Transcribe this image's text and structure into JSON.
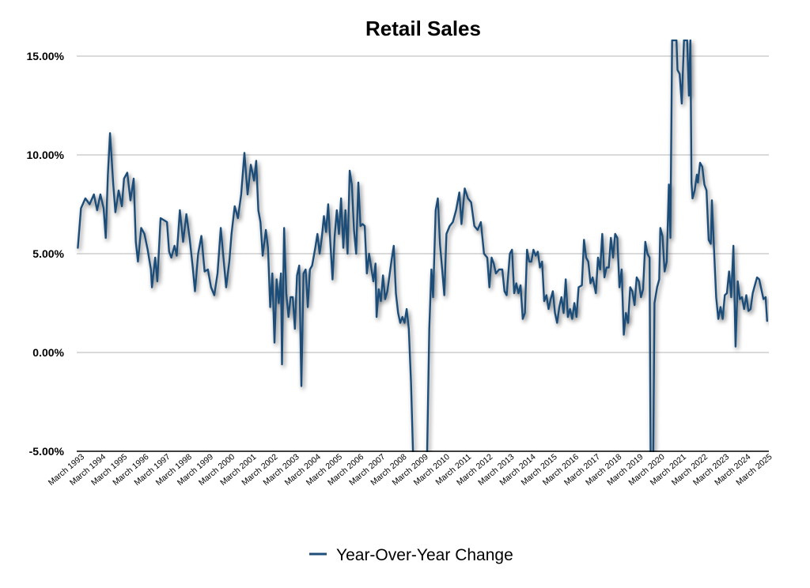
{
  "chart_data": {
    "type": "line",
    "title": "Retail Sales",
    "xlabel": "",
    "ylabel": "",
    "ylim": [
      -5,
      15
    ],
    "y_ticks": [
      "-5.00%",
      "0.00%",
      "5.00%",
      "10.00%",
      "15.00%"
    ],
    "y_tick_values": [
      -5,
      0,
      5,
      10,
      15
    ],
    "x_range": [
      1992.8,
      2025.0
    ],
    "x_tick_labels": [
      "March 1993",
      "March 1994",
      "March 1995",
      "March 1996",
      "March 1997",
      "March 1998",
      "March 1999",
      "March 2000",
      "March 2001",
      "March 2002",
      "March 2003",
      "March 2004",
      "March 2005",
      "March 2006",
      "March 2007",
      "March 2008",
      "March 2009",
      "March 2010",
      "March 2011",
      "March 2012",
      "March 2013",
      "March 2014",
      "March 2015",
      "March 2016",
      "March 2017",
      "March 2018",
      "March 2019",
      "March 2020",
      "March 2021",
      "March 2022",
      "March 2023",
      "March 2024",
      "March 2025"
    ],
    "x_tick_values": [
      1993.17,
      1994.17,
      1995.17,
      1996.17,
      1997.17,
      1998.17,
      1999.17,
      2000.17,
      2001.17,
      2002.17,
      2003.17,
      2004.17,
      2005.17,
      2006.17,
      2007.17,
      2008.17,
      2009.17,
      2010.17,
      2011.17,
      2012.17,
      2013.17,
      2014.17,
      2015.17,
      2016.17,
      2017.17,
      2018.17,
      2019.17,
      2020.17,
      2021.17,
      2022.17,
      2023.17,
      2024.17,
      2025.17
    ],
    "legend": {
      "position": "bottom-center"
    },
    "grid": true,
    "series": [
      {
        "name": "Year-Over-Year Change",
        "color": "#1f4e79",
        "points": [
          [
            1992.85,
            5.3
          ],
          [
            1993.0,
            7.3
          ],
          [
            1993.2,
            7.8
          ],
          [
            1993.4,
            7.5
          ],
          [
            1993.6,
            8.0
          ],
          [
            1993.75,
            7.2
          ],
          [
            1993.9,
            8.0
          ],
          [
            1994.05,
            7.3
          ],
          [
            1994.15,
            5.8
          ],
          [
            1994.25,
            9.0
          ],
          [
            1994.35,
            11.1
          ],
          [
            1994.5,
            8.5
          ],
          [
            1994.6,
            7.1
          ],
          [
            1994.75,
            8.2
          ],
          [
            1994.9,
            7.4
          ],
          [
            1995.0,
            8.8
          ],
          [
            1995.15,
            9.1
          ],
          [
            1995.3,
            7.7
          ],
          [
            1995.45,
            8.8
          ],
          [
            1995.55,
            5.6
          ],
          [
            1995.65,
            4.6
          ],
          [
            1995.8,
            6.3
          ],
          [
            1995.95,
            6.0
          ],
          [
            1996.1,
            5.2
          ],
          [
            1996.25,
            4.2
          ],
          [
            1996.3,
            3.3
          ],
          [
            1996.45,
            4.8
          ],
          [
            1996.55,
            3.6
          ],
          [
            1996.7,
            6.8
          ],
          [
            1996.85,
            6.7
          ],
          [
            1997.0,
            6.6
          ],
          [
            1997.1,
            5.1
          ],
          [
            1997.2,
            4.8
          ],
          [
            1997.35,
            5.4
          ],
          [
            1997.45,
            4.9
          ],
          [
            1997.6,
            7.2
          ],
          [
            1997.75,
            5.6
          ],
          [
            1997.9,
            7.0
          ],
          [
            1998.05,
            5.8
          ],
          [
            1998.2,
            4.3
          ],
          [
            1998.3,
            3.1
          ],
          [
            1998.45,
            5.0
          ],
          [
            1998.6,
            5.9
          ],
          [
            1998.75,
            4.1
          ],
          [
            1998.9,
            4.2
          ],
          [
            1999.05,
            3.3
          ],
          [
            1999.2,
            2.9
          ],
          [
            1999.35,
            4.0
          ],
          [
            1999.5,
            6.3
          ],
          [
            1999.6,
            5.1
          ],
          [
            1999.75,
            3.3
          ],
          [
            1999.9,
            4.6
          ],
          [
            2000.0,
            6.0
          ],
          [
            2000.15,
            7.4
          ],
          [
            2000.3,
            6.8
          ],
          [
            2000.45,
            8.0
          ],
          [
            2000.6,
            10.1
          ],
          [
            2000.75,
            8.0
          ],
          [
            2000.9,
            9.5
          ],
          [
            2001.05,
            8.7
          ],
          [
            2001.15,
            9.7
          ],
          [
            2001.25,
            7.2
          ],
          [
            2001.35,
            6.6
          ],
          [
            2001.45,
            4.9
          ],
          [
            2001.6,
            6.2
          ],
          [
            2001.7,
            5.3
          ],
          [
            2001.8,
            2.3
          ],
          [
            2001.9,
            4.0
          ],
          [
            2002.0,
            0.5
          ],
          [
            2002.1,
            3.7
          ],
          [
            2002.2,
            2.5
          ],
          [
            2002.3,
            4.0
          ],
          [
            2002.35,
            -0.6
          ],
          [
            2002.45,
            6.3
          ],
          [
            2002.55,
            3.0
          ],
          [
            2002.65,
            1.8
          ],
          [
            2002.75,
            2.8
          ],
          [
            2002.85,
            2.8
          ],
          [
            2002.95,
            1.2
          ],
          [
            2003.05,
            3.9
          ],
          [
            2003.15,
            4.4
          ],
          [
            2003.25,
            -1.7
          ],
          [
            2003.35,
            4.0
          ],
          [
            2003.45,
            4.2
          ],
          [
            2003.55,
            2.3
          ],
          [
            2003.65,
            4.2
          ],
          [
            2003.75,
            4.4
          ],
          [
            2003.9,
            5.3
          ],
          [
            2004.0,
            6.0
          ],
          [
            2004.1,
            5.0
          ],
          [
            2004.2,
            5.8
          ],
          [
            2004.3,
            6.9
          ],
          [
            2004.4,
            6.1
          ],
          [
            2004.5,
            7.5
          ],
          [
            2004.6,
            5.5
          ],
          [
            2004.7,
            3.7
          ],
          [
            2004.8,
            5.9
          ],
          [
            2004.9,
            7.2
          ],
          [
            2005.0,
            6.0
          ],
          [
            2005.1,
            7.8
          ],
          [
            2005.2,
            5.3
          ],
          [
            2005.3,
            7.2
          ],
          [
            2005.4,
            5.0
          ],
          [
            2005.5,
            9.2
          ],
          [
            2005.6,
            8.5
          ],
          [
            2005.7,
            6.2
          ],
          [
            2005.8,
            5.0
          ],
          [
            2005.9,
            8.6
          ],
          [
            2006.0,
            6.4
          ],
          [
            2006.1,
            6.5
          ],
          [
            2006.2,
            6.4
          ],
          [
            2006.3,
            4.0
          ],
          [
            2006.4,
            5.0
          ],
          [
            2006.5,
            4.3
          ],
          [
            2006.6,
            3.6
          ],
          [
            2006.7,
            4.5
          ],
          [
            2006.75,
            1.8
          ],
          [
            2006.85,
            3.2
          ],
          [
            2006.95,
            2.6
          ],
          [
            2007.05,
            3.9
          ],
          [
            2007.15,
            2.7
          ],
          [
            2007.25,
            3.1
          ],
          [
            2007.35,
            3.9
          ],
          [
            2007.45,
            4.7
          ],
          [
            2007.55,
            5.4
          ],
          [
            2007.65,
            3.0
          ],
          [
            2007.75,
            2.0
          ],
          [
            2007.85,
            1.5
          ],
          [
            2007.95,
            1.8
          ],
          [
            2008.05,
            1.5
          ],
          [
            2008.15,
            2.2
          ],
          [
            2008.25,
            1.2
          ],
          [
            2008.35,
            -1.5
          ],
          [
            2008.45,
            -5.3
          ],
          [
            2009.1,
            -5.3
          ],
          [
            2009.2,
            1.2
          ],
          [
            2009.3,
            4.2
          ],
          [
            2009.38,
            2.8
          ],
          [
            2009.5,
            7.2
          ],
          [
            2009.6,
            7.8
          ],
          [
            2009.7,
            5.5
          ],
          [
            2009.8,
            4.2
          ],
          [
            2009.9,
            2.9
          ],
          [
            2010.0,
            6.0
          ],
          [
            2010.15,
            6.4
          ],
          [
            2010.3,
            6.6
          ],
          [
            2010.45,
            7.2
          ],
          [
            2010.6,
            8.1
          ],
          [
            2010.7,
            6.5
          ],
          [
            2010.85,
            8.3
          ],
          [
            2011.0,
            7.8
          ],
          [
            2011.15,
            7.6
          ],
          [
            2011.3,
            6.4
          ],
          [
            2011.45,
            6.2
          ],
          [
            2011.6,
            6.6
          ],
          [
            2011.75,
            5.0
          ],
          [
            2011.9,
            4.8
          ],
          [
            2012.0,
            3.3
          ],
          [
            2012.1,
            4.8
          ],
          [
            2012.2,
            4.5
          ],
          [
            2012.3,
            4.0
          ],
          [
            2012.45,
            4.2
          ],
          [
            2012.6,
            4.2
          ],
          [
            2012.7,
            3.1
          ],
          [
            2012.8,
            2.9
          ],
          [
            2012.95,
            5.0
          ],
          [
            2013.05,
            5.2
          ],
          [
            2013.15,
            3.0
          ],
          [
            2013.25,
            3.5
          ],
          [
            2013.35,
            3.0
          ],
          [
            2013.45,
            3.4
          ],
          [
            2013.55,
            1.7
          ],
          [
            2013.65,
            2.0
          ],
          [
            2013.75,
            5.2
          ],
          [
            2013.85,
            4.6
          ],
          [
            2013.95,
            4.6
          ],
          [
            2014.05,
            5.2
          ],
          [
            2014.15,
            4.9
          ],
          [
            2014.25,
            5.1
          ],
          [
            2014.35,
            4.3
          ],
          [
            2014.45,
            4.6
          ],
          [
            2014.55,
            2.6
          ],
          [
            2014.65,
            2.9
          ],
          [
            2014.75,
            2.2
          ],
          [
            2014.85,
            2.7
          ],
          [
            2014.95,
            3.1
          ],
          [
            2015.05,
            2.0
          ],
          [
            2015.15,
            1.5
          ],
          [
            2015.25,
            2.3
          ],
          [
            2015.35,
            2.8
          ],
          [
            2015.45,
            2.0
          ],
          [
            2015.55,
            3.7
          ],
          [
            2015.65,
            1.8
          ],
          [
            2015.75,
            2.2
          ],
          [
            2015.85,
            1.7
          ],
          [
            2015.95,
            2.5
          ],
          [
            2016.05,
            1.8
          ],
          [
            2016.15,
            3.3
          ],
          [
            2016.3,
            3.4
          ],
          [
            2016.4,
            5.7
          ],
          [
            2016.5,
            4.8
          ],
          [
            2016.6,
            4.6
          ],
          [
            2016.7,
            3.5
          ],
          [
            2016.8,
            3.8
          ],
          [
            2016.95,
            3.0
          ],
          [
            2017.05,
            4.8
          ],
          [
            2017.15,
            4.2
          ],
          [
            2017.25,
            6.0
          ],
          [
            2017.35,
            3.8
          ],
          [
            2017.45,
            4.3
          ],
          [
            2017.55,
            4.3
          ],
          [
            2017.65,
            5.8
          ],
          [
            2017.75,
            4.8
          ],
          [
            2017.85,
            6.0
          ],
          [
            2017.95,
            5.8
          ],
          [
            2018.05,
            3.3
          ],
          [
            2018.15,
            4.2
          ],
          [
            2018.25,
            0.9
          ],
          [
            2018.35,
            2.0
          ],
          [
            2018.45,
            1.5
          ],
          [
            2018.55,
            3.3
          ],
          [
            2018.65,
            3.1
          ],
          [
            2018.75,
            2.4
          ],
          [
            2018.85,
            3.8
          ],
          [
            2018.95,
            3.6
          ],
          [
            2019.05,
            2.8
          ],
          [
            2019.15,
            3.2
          ],
          [
            2019.25,
            5.6
          ],
          [
            2019.35,
            5.0
          ],
          [
            2019.45,
            4.8
          ],
          [
            2019.5,
            -5.3
          ],
          [
            2019.62,
            -5.3
          ],
          [
            2019.68,
            2.5
          ],
          [
            2019.8,
            3.3
          ],
          [
            2019.9,
            3.7
          ],
          [
            2019.95,
            6.3
          ],
          [
            2020.05,
            5.9
          ],
          [
            2020.15,
            4.1
          ],
          [
            2020.25,
            4.6
          ],
          [
            2020.35,
            8.5
          ],
          [
            2020.42,
            5.8
          ],
          [
            2020.5,
            15.8
          ],
          [
            2020.62,
            15.8
          ],
          [
            2020.7,
            15.8
          ],
          [
            2020.75,
            14.3
          ],
          [
            2020.85,
            14.1
          ],
          [
            2020.95,
            12.6
          ],
          [
            2021.05,
            15.8
          ],
          [
            2021.2,
            15.8
          ],
          [
            2021.28,
            13.0
          ],
          [
            2021.35,
            15.8
          ],
          [
            2021.4,
            8.6
          ],
          [
            2021.45,
            7.8
          ],
          [
            2021.55,
            8.2
          ],
          [
            2021.65,
            9.0
          ],
          [
            2021.7,
            8.6
          ],
          [
            2021.8,
            9.6
          ],
          [
            2021.9,
            9.4
          ],
          [
            2022.0,
            8.5
          ],
          [
            2022.1,
            8.2
          ],
          [
            2022.2,
            5.7
          ],
          [
            2022.3,
            5.5
          ],
          [
            2022.35,
            7.7
          ],
          [
            2022.45,
            5.2
          ],
          [
            2022.55,
            2.8
          ],
          [
            2022.65,
            1.7
          ],
          [
            2022.75,
            2.3
          ],
          [
            2022.85,
            1.7
          ],
          [
            2022.95,
            2.9
          ],
          [
            2023.05,
            3.0
          ],
          [
            2023.15,
            4.1
          ],
          [
            2023.25,
            2.8
          ],
          [
            2023.35,
            5.4
          ],
          [
            2023.45,
            0.3
          ],
          [
            2023.55,
            3.6
          ],
          [
            2023.65,
            2.7
          ],
          [
            2023.75,
            2.8
          ],
          [
            2023.85,
            2.2
          ],
          [
            2023.95,
            2.9
          ],
          [
            2024.05,
            2.1
          ],
          [
            2024.15,
            2.2
          ],
          [
            2024.25,
            3.0
          ],
          [
            2024.35,
            3.4
          ],
          [
            2024.45,
            3.8
          ],
          [
            2024.55,
            3.7
          ],
          [
            2024.65,
            3.2
          ],
          [
            2024.75,
            2.7
          ],
          [
            2024.85,
            2.8
          ],
          [
            2024.92,
            1.6
          ]
        ]
      }
    ]
  }
}
